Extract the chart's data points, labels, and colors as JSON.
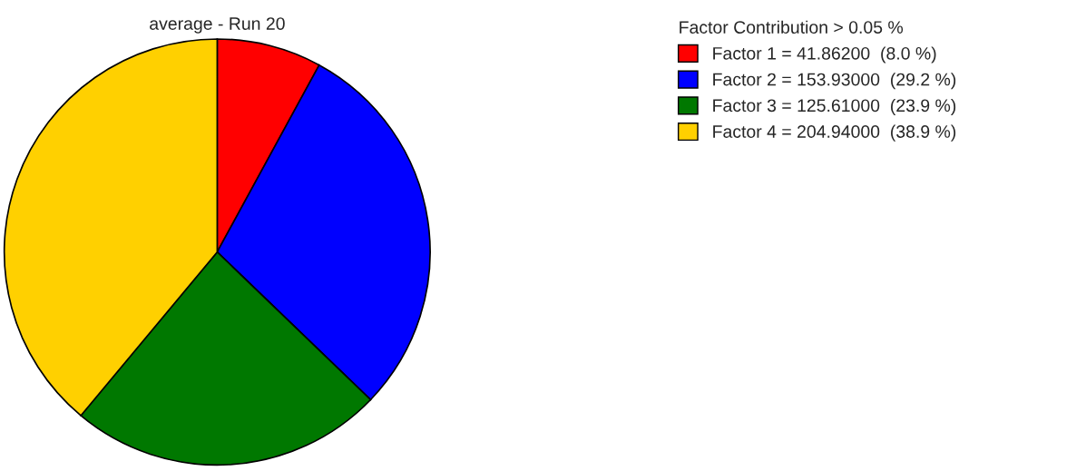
{
  "chart_data": {
    "type": "pie",
    "title": "average - Run 20",
    "legend_title": "Factor Contribution > 0.05 %",
    "categories": [
      "Factor 1 = 41.86200  (8.0 %)",
      "Factor 2 = 153.93000  (29.2 %)",
      "Factor 3 = 125.61000  (23.9 %)",
      "Factor 4 = 204.94000  (38.9 %)"
    ],
    "values": [
      41.862,
      153.93,
      125.61,
      204.94
    ],
    "colors": [
      "#ff0000",
      "#0000ff",
      "#007800",
      "#ffd000"
    ],
    "legend": "top right"
  }
}
